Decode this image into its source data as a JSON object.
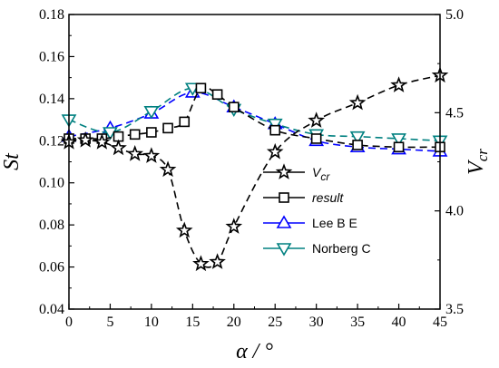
{
  "chart_data": {
    "type": "line",
    "xlabel": "α / °",
    "ylabel_left": "St",
    "ylabel_right": "Vcr",
    "xlim": [
      0,
      45
    ],
    "ylim_left": [
      0.04,
      0.18
    ],
    "ylim_right": [
      3.5,
      5.0
    ],
    "x_ticks": [
      0,
      5,
      10,
      15,
      20,
      25,
      30,
      35,
      40,
      45
    ],
    "y_left_ticks": [
      0.04,
      0.06,
      0.08,
      0.1,
      0.12,
      0.14,
      0.16,
      0.18
    ],
    "y_left_tick_labels": [
      "0.04",
      "0.06",
      "0.08",
      "0.10",
      "0.12",
      "0.14",
      "0.16",
      "0.18"
    ],
    "y_right_ticks": [
      3.5,
      4.0,
      4.5,
      5.0
    ],
    "y_right_tick_labels": [
      "3.5",
      "4.0",
      "4.5",
      "5.0"
    ],
    "legend_position": "center",
    "series": [
      {
        "name": "Vcr",
        "axis": "right",
        "marker": "star",
        "color": "#000000",
        "x": [
          0,
          2,
          4,
          6,
          8,
          10,
          12,
          14,
          16,
          18,
          20,
          25,
          30,
          35,
          40,
          45
        ],
        "values": [
          4.35,
          4.36,
          4.35,
          4.32,
          4.29,
          4.28,
          4.21,
          3.9,
          3.73,
          3.74,
          3.92,
          4.3,
          4.46,
          4.55,
          4.64,
          4.69
        ]
      },
      {
        "name": "result",
        "axis": "left",
        "marker": "square",
        "color": "#000000",
        "x": [
          0,
          2,
          4,
          6,
          8,
          10,
          12,
          14,
          16,
          18,
          20,
          25,
          30,
          35,
          40,
          45
        ],
        "values": [
          0.121,
          0.121,
          0.121,
          0.122,
          0.123,
          0.124,
          0.126,
          0.129,
          0.145,
          0.142,
          0.136,
          0.125,
          0.121,
          0.118,
          0.117,
          0.117
        ]
      },
      {
        "name": "Lee B E",
        "axis": "left",
        "marker": "triangle-up",
        "color": "#0000ff",
        "x": [
          0,
          5,
          10,
          15,
          20,
          25,
          30,
          35,
          40,
          45
        ],
        "values": [
          0.122,
          0.126,
          0.133,
          0.143,
          0.136,
          0.128,
          0.12,
          0.117,
          0.116,
          0.115
        ]
      },
      {
        "name": "Norberg C",
        "axis": "left",
        "marker": "triangle-down",
        "color": "#008080",
        "x": [
          0,
          5,
          10,
          15,
          20,
          25,
          30,
          35,
          40,
          45
        ],
        "values": [
          0.13,
          0.124,
          0.134,
          0.145,
          0.135,
          0.128,
          0.123,
          0.122,
          0.121,
          0.12
        ]
      }
    ]
  }
}
